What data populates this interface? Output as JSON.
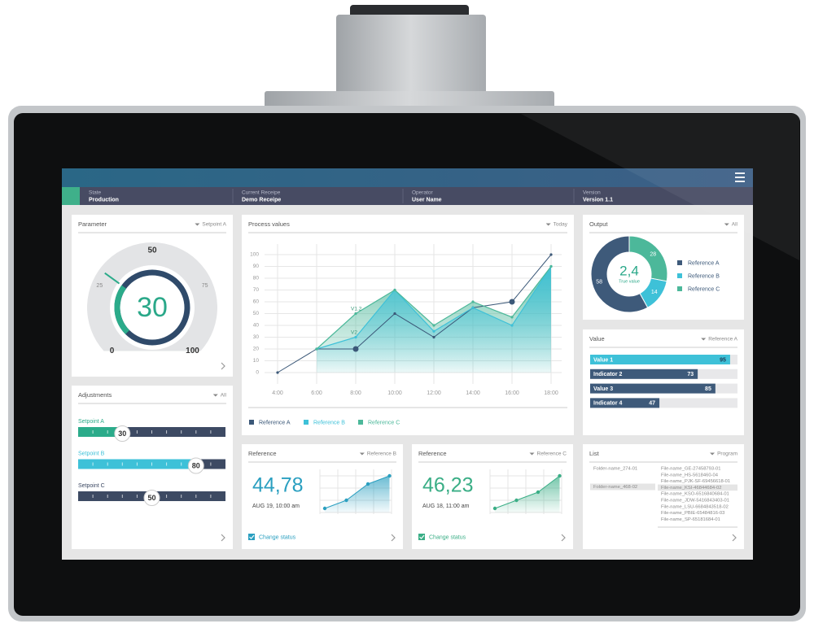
{
  "header": {
    "state_label": "State",
    "state": "Production",
    "receipe_label": "Current Receipe",
    "receipe": "Demo Receipe",
    "operator_label": "Operator",
    "operator": "User Name",
    "version_label": "Version",
    "version": "Version 1.1"
  },
  "parameter": {
    "title": "Parameter",
    "filter": "Setpoint A",
    "value": 30,
    "range": [
      0,
      100
    ],
    "ticks": [
      0,
      25,
      50,
      75,
      100
    ]
  },
  "adjustments": {
    "title": "Adjustments",
    "filter": "All",
    "range": [
      0,
      100
    ],
    "sliders": [
      {
        "name": "Setpoint A",
        "value": 30,
        "color": "#2bab8a"
      },
      {
        "name": "Setpoint B",
        "value": 80,
        "color": "#3ec1d8"
      },
      {
        "name": "Setpoint C",
        "value": 50,
        "color": "#3d4a63"
      }
    ]
  },
  "process_values": {
    "title": "Process values",
    "filter": "Today",
    "type": "area",
    "categories": [
      "4:00",
      "6:00",
      "8:00",
      "10:00",
      "12:00",
      "14:00",
      "16:00",
      "18:00"
    ],
    "series": [
      {
        "name": "Reference A",
        "color": "#3b5878",
        "values": [
          0,
          20,
          20,
          50,
          30,
          55,
          60,
          100
        ]
      },
      {
        "name": "Reference B",
        "color": "#3ec1d8",
        "values": [
          null,
          20,
          30,
          70,
          35,
          55,
          40,
          90
        ]
      },
      {
        "name": "Reference C",
        "color": "#4cb89a",
        "values": [
          null,
          20,
          50,
          70,
          40,
          60,
          47,
          90
        ]
      }
    ],
    "ylim": [
      0,
      100
    ],
    "yticks": [
      0,
      10,
      20,
      30,
      40,
      50,
      60,
      70,
      80,
      90,
      100
    ],
    "grid": true,
    "annotations": [
      "V1.2",
      "V2"
    ]
  },
  "output": {
    "title": "Output",
    "filter": "All",
    "type": "pie",
    "center_value": "2,4",
    "center_label": "True value",
    "series": [
      {
        "name": "Reference A",
        "value": 58,
        "color": "#3e5a7a"
      },
      {
        "name": "Reference B",
        "value": 14,
        "color": "#3ec1d8"
      },
      {
        "name": "Reference C",
        "value": 28,
        "color": "#4cb89a"
      }
    ]
  },
  "value_bars": {
    "title": "Value",
    "filter": "Reference A",
    "range": [
      0,
      100
    ],
    "bars": [
      {
        "name": "Value 1",
        "value": 95,
        "color": "#3ec1d8"
      },
      {
        "name": "Indicator 2",
        "value": 73,
        "color": "#3e5a7a"
      },
      {
        "name": "Value 3",
        "value": 85,
        "color": "#3e5a7a"
      },
      {
        "name": "Indicator 4",
        "value": 47,
        "color": "#3e5a7a"
      }
    ]
  },
  "reference_cards": [
    {
      "title": "Reference",
      "filter": "Reference B",
      "value": "44,78",
      "date": "AUG 19, 10:00 am",
      "checkbox": "Change status",
      "color": "#2a9fc0",
      "trend": [
        1,
        3,
        7,
        9
      ],
      "ylim": [
        0,
        10
      ]
    },
    {
      "title": "Reference",
      "filter": "Reference C",
      "value": "46,23",
      "date": "AUG 18, 11:00 am",
      "checkbox": "Change status",
      "color": "#3aae86",
      "trend": [
        1,
        3,
        5,
        9
      ],
      "ylim": [
        0,
        10
      ]
    }
  ],
  "list": {
    "title": "List",
    "filter": "Program",
    "selected_folder": 1,
    "selected_file": 3,
    "folders": [
      "Folder-name_274-01",
      "Folder-name_468-02"
    ],
    "files": [
      "File-name_GE-27458793-01",
      "File-name_HS-5618460-04",
      "File-name_PJK-SF-69456618-01",
      "File-name_KSI-46844684-02",
      "File-name_KSO-6516840684-01",
      "File-name_JDW-5416843403-01",
      "File-name_LSU-6684843518-02",
      "File-name_PBIE-65484816-03",
      "File-name_SP-65181684-01"
    ]
  }
}
